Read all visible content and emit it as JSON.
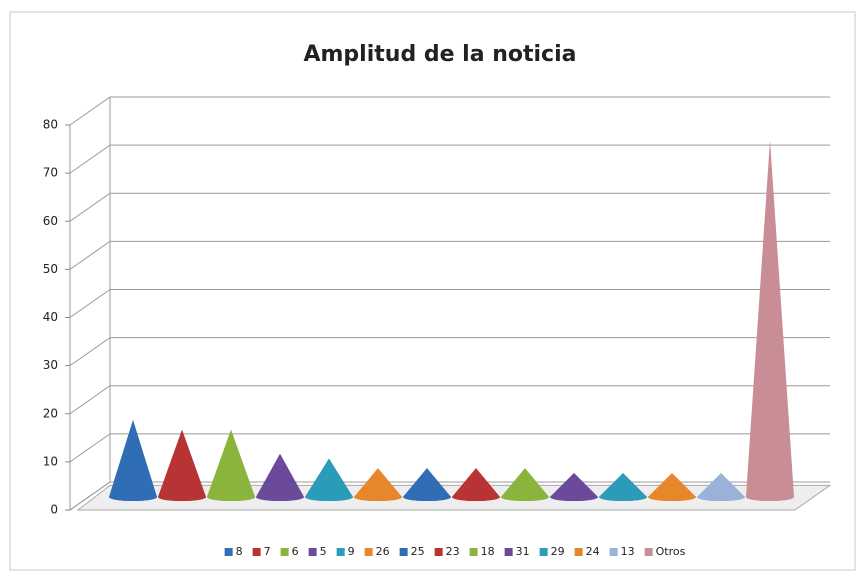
{
  "chart_data": {
    "type": "cone",
    "title": "Amplitud de la noticia",
    "series": [
      {
        "name": "8",
        "color": "#2f6db5",
        "values": [
          16
        ]
      },
      {
        "name": "7",
        "color": "#b83434",
        "values": [
          14
        ]
      },
      {
        "name": "6",
        "color": "#8ab43c",
        "values": [
          14
        ]
      },
      {
        "name": "5",
        "color": "#6b4a9b",
        "values": [
          9
        ]
      },
      {
        "name": "9",
        "color": "#2a9bb9",
        "values": [
          8
        ]
      },
      {
        "name": "26",
        "color": "#e8862b",
        "values": [
          6
        ]
      },
      {
        "name": "25",
        "color": "#2f6db5",
        "values": [
          6
        ]
      },
      {
        "name": "23",
        "color": "#b83434",
        "values": [
          6
        ]
      },
      {
        "name": "18",
        "color": "#8ab43c",
        "values": [
          6
        ]
      },
      {
        "name": "31",
        "color": "#6b4a9b",
        "values": [
          5
        ]
      },
      {
        "name": "29",
        "color": "#2a9bb9",
        "values": [
          5
        ]
      },
      {
        "name": "24",
        "color": "#e8862b",
        "values": [
          5
        ]
      },
      {
        "name": "13",
        "color": "#9ab1d8",
        "values": [
          5
        ]
      },
      {
        "name": "Otros",
        "color": "#c98e95",
        "values": [
          74
        ]
      }
    ],
    "ylim": [
      0,
      80
    ],
    "yticks": [
      0,
      10,
      20,
      30,
      40,
      50,
      60,
      70,
      80
    ],
    "grid": true,
    "legend": "bottom"
  }
}
